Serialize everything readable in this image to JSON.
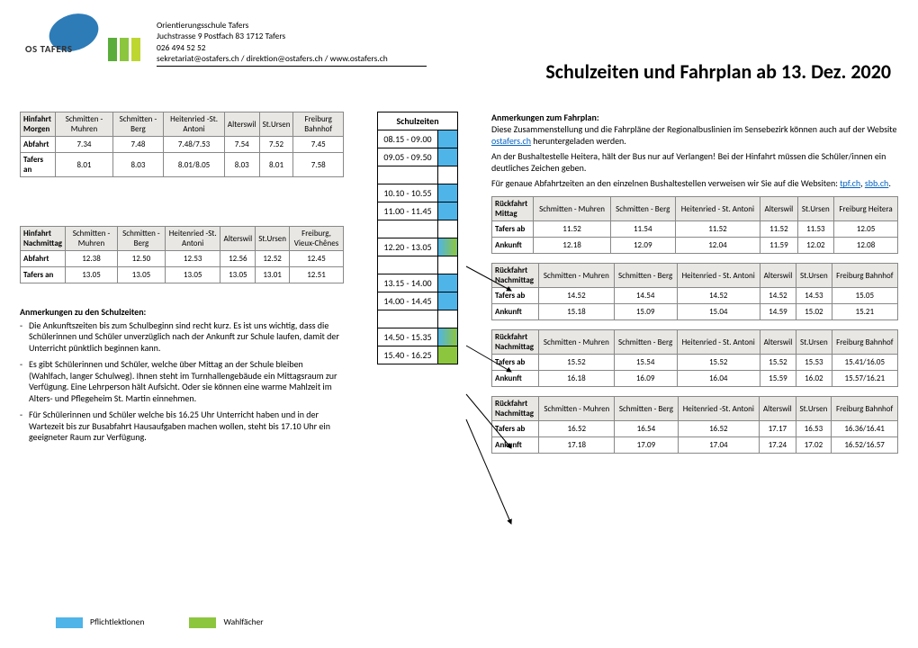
{
  "school": {
    "name": "Orientierungsschule  Tafers",
    "address": "Juchstrasse 9   Postfach 83   1712 Tafers",
    "phone": "026 494 52 52",
    "contacts": "sekretariat@ostafers.ch   /   direktion@ostafers.ch   /   www.ostafers.ch",
    "logo_text": "OS TAFERS"
  },
  "title": "Schulzeiten und Fahrplan ab 13. Dez. 2020",
  "hin_morgen": {
    "title": "Hinfahrt Morgen",
    "cols": [
      "Schmitten - Muhren",
      "Schmitten - Berg",
      "Heitenried -St. Antoni",
      "Alterswil",
      "St.Ursen",
      "Freiburg Bahnhof"
    ],
    "rows": [
      {
        "lbl": "Abfahrt",
        "v": [
          "7.34",
          "7.48",
          "7.48/7.53",
          "7.54",
          "7.52",
          "7.45"
        ]
      },
      {
        "lbl": "Tafers an",
        "v": [
          "8.01",
          "8.03",
          "8.01/8.05",
          "8.03",
          "8.01",
          "7.58"
        ]
      }
    ]
  },
  "hin_nachm": {
    "title": "Hinfahrt Nachmittag",
    "cols": [
      "Schmitten - Muhren",
      "Schmitten - Berg",
      "Heitenried -St. Antoni",
      "Alterswil",
      "St.Ursen",
      "Freiburg, Vieux-Chênes"
    ],
    "rows": [
      {
        "lbl": "Abfahrt",
        "v": [
          "12.38",
          "12.50",
          "12.53",
          "12.56",
          "12.52",
          "12.45"
        ]
      },
      {
        "lbl": "Tafers an",
        "v": [
          "13.05",
          "13.05",
          "13.05",
          "13.05",
          "13.01",
          "12.51"
        ]
      }
    ]
  },
  "schulzeiten_label": "Schulzeiten",
  "schulzeiten": [
    {
      "t": "08.15 - 09.00",
      "c": "sw-blue",
      "group": "a-start"
    },
    {
      "t": "09.05 - 09.50",
      "c": "sw-blue",
      "group": ""
    },
    {
      "t": "10.10 - 10.55",
      "c": "sw-blue",
      "group": "b-start"
    },
    {
      "t": "11.00 - 11.45",
      "c": "sw-blue",
      "group": "b-end"
    },
    {
      "t": "12.20 - 13.05",
      "c": "sw-bgrad",
      "group": "c"
    },
    {
      "t": "13.15 - 14.00",
      "c": "sw-blue",
      "group": "d-start"
    },
    {
      "t": "14.00 - 14.45",
      "c": "sw-blue",
      "group": "d-end"
    },
    {
      "t": "14.50 - 15.35",
      "c": "sw-bgrad",
      "group": "e-start"
    },
    {
      "t": "15.40 - 16.25",
      "c": "sw-green",
      "group": "e-end"
    }
  ],
  "rueck": [
    {
      "title": "Rückfahrt Mittag",
      "cols": [
        "Schmitten - Muhren",
        "Schmitten - Berg",
        "Heitenried - St. Antoni",
        "Alterswil",
        "St.Ursen",
        "Freiburg Heitera"
      ],
      "rows": [
        {
          "lbl": "Tafers ab",
          "v": [
            "11.52",
            "11.54",
            "11.52",
            "11.52",
            "11.53",
            "12.05"
          ]
        },
        {
          "lbl": "Ankunft",
          "v": [
            "12.18",
            "12.09",
            "12.04",
            "11.59",
            "12.02",
            "12.08"
          ]
        }
      ]
    },
    {
      "title": "Rückfahrt Nachmittag",
      "cols": [
        "Schmitten - Muhren",
        "Schmitten - Berg",
        "Heitenried - St. Antoni",
        "Alterswil",
        "St.Ursen",
        "Freiburg Bahnhof"
      ],
      "rows": [
        {
          "lbl": "Tafers ab",
          "v": [
            "14.52",
            "14.54",
            "14.52",
            "14.52",
            "14.53",
            "15.05"
          ]
        },
        {
          "lbl": "Ankunft",
          "v": [
            "15.18",
            "15.09",
            "15.04",
            "14.59",
            "15.02",
            "15.21"
          ]
        }
      ]
    },
    {
      "title": "Rückfahrt Nachmittag",
      "cols": [
        "Schmitten - Muhren",
        "Schmitten - Berg",
        "Heitenried - St. Antoni",
        "Alterswil",
        "St.Ursen",
        "Freiburg Bahnhof"
      ],
      "rows": [
        {
          "lbl": "Tafers ab",
          "v": [
            "15.52",
            "15.54",
            "15.52",
            "15.52",
            "15.53",
            "15.41/16.05"
          ]
        },
        {
          "lbl": "Ankunft",
          "v": [
            "16.18",
            "16.09",
            "16.04",
            "15.59",
            "16.02",
            "15.57/16.21"
          ]
        }
      ]
    },
    {
      "title": "Rückfahrt Nachmittag",
      "cols": [
        "Schmitten - Muhren",
        "Schmitten - Berg",
        "Heitenried -St. Antoni",
        "Alterswil",
        "St.Ursen",
        "Freiburg Bahnhof"
      ],
      "rows": [
        {
          "lbl": "Tafers ab",
          "v": [
            "16.52",
            "16.54",
            "16.52",
            "17.17",
            "16.53",
            "16.36/16.41"
          ]
        },
        {
          "lbl": "Ankunft",
          "v": [
            "17.18",
            "17.09",
            "17.04",
            "17.24",
            "17.02",
            "16.52/16.57"
          ]
        }
      ]
    }
  ],
  "left_notes": {
    "head": "Anmerkungen zu den Schulzeiten:",
    "items": [
      "Die Ankunftszeiten bis zum Schulbeginn sind recht kurz. Es ist uns wichtig, dass die Schülerinnen und Schüler unverzüglich nach der Ankunft zur Schule laufen, damit der Unterricht pünktlich beginnen kann.",
      "Es gibt Schülerinnen und Schüler, welche über Mittag an der Schule bleiben (Wahlfach, langer Schulweg). Ihnen steht im Turnhallengebäude ein Mittagsraum zur Verfügung. Eine Lehrperson hält Aufsicht. Oder sie können eine warme Mahlzeit im Alters- und Pflegeheim St. Martin einnehmen.",
      "Für Schülerinnen und Schüler welche bis 16.25 Uhr Unterricht haben und in der Wartezeit bis zur Busabfahrt Hausaufgaben machen wollen, steht bis 17.10 Uhr ein geeigneter Raum zur Verfügung."
    ]
  },
  "right_notes": {
    "head": "Anmerkungen zum Fahrplan:",
    "p": [
      "Diese Zusammenstellung und die Fahrpläne der Regionalbuslinien im Sensebezirk können auch auf der Website ostafers.ch heruntergeladen werden.",
      "An der Bushaltestelle Heitera, hält der Bus nur auf Verlangen! Bei der Hinfahrt müssen die Schüler/innen ein deutliches Zeichen geben.",
      "Für genaue Abfahrtzeiten an den einzelnen Bushaltestellen verweisen wir Sie auf die Websiten: tpf.ch, sbb.ch."
    ],
    "link1": "ostafers.ch",
    "link2": "tpf.ch",
    "link3": "sbb.ch"
  },
  "legend": {
    "blue": "Pflichtlektionen",
    "green": "Wahlfächer"
  },
  "colors": {
    "blue": "#4fb4e8",
    "green": "#8cc63f",
    "logo_blue": "#2d7cb8",
    "link": "#0563c1",
    "header_bg": "#e9e7e4",
    "border": "#888888"
  }
}
